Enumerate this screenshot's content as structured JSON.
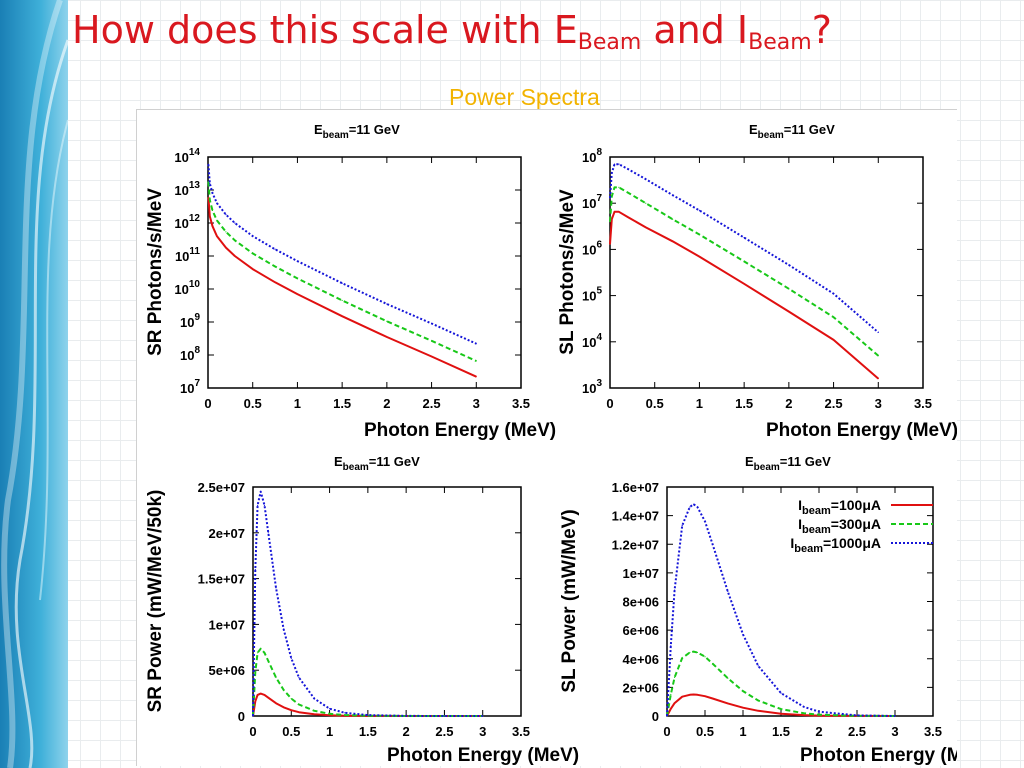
{
  "slide": {
    "title": {
      "part1": "How does this scale with E",
      "sub1": "Beam",
      "part2": " and I",
      "sub2": "Beam",
      "part3": "?"
    },
    "subtitle": "Power Spectra"
  },
  "colors": {
    "title": "#d9181f",
    "subtitle": "#f2b300",
    "i100": "#e01010",
    "i300": "#18c818",
    "i1000": "#1515d8"
  },
  "chart_data": [
    {
      "type": "line",
      "panel": "top-left",
      "title": {
        "main": "E",
        "sub": "beam",
        "rest": "=11 GeV"
      },
      "xlabel": "Photon Energy (MeV)",
      "ylabel": "SR Photons/s/MeV",
      "xlim": [
        0,
        3.5
      ],
      "ylim": [
        10000000.0,
        100000000000000.0
      ],
      "yscale": "log",
      "xticks": [
        "0",
        "0.5",
        "1",
        "1.5",
        "2",
        "2.5",
        "3",
        "3.5"
      ],
      "yticks": [
        {
          "base": "10",
          "exp": "14"
        },
        {
          "base": "10",
          "exp": "13"
        },
        {
          "base": "10",
          "exp": "12"
        },
        {
          "base": "10",
          "exp": "11"
        },
        {
          "base": "10",
          "exp": "10"
        },
        {
          "base": "10",
          "exp": "9"
        },
        {
          "base": "10",
          "exp": "8"
        },
        {
          "base": "10",
          "exp": "7"
        }
      ],
      "x": [
        0.005,
        0.02,
        0.05,
        0.1,
        0.2,
        0.3,
        0.5,
        0.75,
        1.0,
        1.5,
        2.0,
        2.5,
        3.0
      ],
      "series": [
        {
          "color": "red",
          "dash": "solid",
          "values": [
            6000000000000.0,
            1600000000000.0,
            800000000000.0,
            400000000000.0,
            180000000000.0,
            100000000000.0,
            40000000000.0,
            16000000000.0,
            7000000000.0,
            1500000000.0,
            350000000.0,
            90000000.0,
            22000000.0
          ]
        },
        {
          "color": "green",
          "dash": "dashed",
          "values": [
            18000000000000.0,
            5000000000000.0,
            2400000000000.0,
            1200000000000.0,
            540000000000.0,
            300000000000.0,
            120000000000.0,
            48000000000.0,
            21000000000.0,
            4500000000.0,
            1050000000.0,
            270000000.0,
            66000000.0
          ]
        },
        {
          "color": "blue",
          "dash": "dotted",
          "values": [
            60000000000000.0,
            16000000000000.0,
            8000000000000.0,
            4000000000000.0,
            1800000000000.0,
            1000000000000.0,
            400000000000.0,
            160000000000.0,
            70000000000.0,
            15000000000.0,
            3500000000.0,
            900000000.0,
            220000000.0
          ]
        }
      ]
    },
    {
      "type": "line",
      "panel": "top-right",
      "title": {
        "main": "E",
        "sub": "beam",
        "rest": "=11 GeV"
      },
      "xlabel": "Photon Energy (MeV)",
      "ylabel": "SL Photons/s/MeV",
      "xlim": [
        0,
        3.5
      ],
      "ylim": [
        1000.0,
        100000000.0
      ],
      "yscale": "log",
      "xticks": [
        "0",
        "0.5",
        "1",
        "1.5",
        "2",
        "2.5",
        "3",
        "3.5"
      ],
      "yticks": [
        {
          "base": "10",
          "exp": "8"
        },
        {
          "base": "10",
          "exp": "7"
        },
        {
          "base": "10",
          "exp": "6"
        },
        {
          "base": "10",
          "exp": "5"
        },
        {
          "base": "10",
          "exp": "4"
        },
        {
          "base": "10",
          "exp": "3"
        }
      ],
      "x": [
        0.0,
        0.02,
        0.05,
        0.1,
        0.2,
        0.4,
        0.7,
        1.0,
        1.5,
        2.0,
        2.5,
        3.0
      ],
      "series": [
        {
          "color": "red",
          "dash": "solid",
          "values": [
            1300000.0,
            4500000.0,
            6500000.0,
            6500000.0,
            5000000.0,
            3000000.0,
            1500000.0,
            700000.0,
            180000.0,
            45000.0,
            11000.0,
            1600.0
          ]
        },
        {
          "color": "green",
          "dash": "dashed",
          "values": [
            4000000.0,
            14000000.0,
            22000000.0,
            22000000.0,
            17000000.0,
            10000000.0,
            4500000.0,
            2100000.0,
            550000.0,
            140000.0,
            34000.0,
            5000.0
          ]
        },
        {
          "color": "blue",
          "dash": "dotted",
          "values": [
            13000000.0,
            45000000.0,
            70000000.0,
            70000000.0,
            55000000.0,
            33000000.0,
            15000000.0,
            7000000.0,
            1800000.0,
            460000.0,
            110000.0,
            16000.0
          ]
        }
      ]
    },
    {
      "type": "line",
      "panel": "bottom-left",
      "title": {
        "main": "E",
        "sub": "beam",
        "rest": "=11 GeV"
      },
      "xlabel": "Photon Energy (MeV)",
      "ylabel": "SR Power (mW/MeV/50k)",
      "xlim": [
        0,
        3.5
      ],
      "ylim": [
        0,
        25000000.0
      ],
      "yscale": "linear",
      "xticks": [
        "0",
        "0.5",
        "1",
        "1.5",
        "2",
        "2.5",
        "3",
        "3.5"
      ],
      "yticks": [
        "2.5e+07",
        "2e+07",
        "1.5e+07",
        "1e+07",
        "5e+06",
        "0"
      ],
      "x": [
        0.0,
        0.03,
        0.06,
        0.1,
        0.15,
        0.2,
        0.3,
        0.4,
        0.5,
        0.6,
        0.8,
        1.0,
        1.2,
        1.5,
        2.0,
        2.5,
        3.0
      ],
      "series": [
        {
          "color": "red",
          "dash": "solid",
          "values": [
            0,
            1600000.0,
            2300000.0,
            2450000.0,
            2300000.0,
            2000000.0,
            1400000.0,
            950000.0,
            630000.0,
            420000.0,
            190000.0,
            80000.0,
            35000.0,
            10000.0,
            1000.0,
            0,
            0
          ]
        },
        {
          "color": "green",
          "dash": "dashed",
          "values": [
            0,
            4800000.0,
            6900000.0,
            7350000.0,
            6900000.0,
            6000000.0,
            4200000.0,
            2850000.0,
            1900000.0,
            1250000.0,
            570000.0,
            240000.0,
            105000.0,
            30000.0,
            3000.0,
            0,
            0
          ]
        },
        {
          "color": "blue",
          "dash": "dotted",
          "values": [
            0,
            16000000.0,
            23000000.0,
            24500000.0,
            23000000.0,
            20000000.0,
            14000000.0,
            9500000.0,
            6300000.0,
            4200000.0,
            1900000.0,
            800000.0,
            350000.0,
            100000.0,
            10000.0,
            1000.0,
            0
          ]
        }
      ]
    },
    {
      "type": "line",
      "panel": "bottom-right",
      "title": {
        "main": "E",
        "sub": "beam",
        "rest": "=11 GeV"
      },
      "xlabel": "Photon Energy (MeV)",
      "ylabel": "SL Power (mW/MeV)",
      "xlim": [
        0,
        3.5
      ],
      "ylim": [
        0,
        16000000.0
      ],
      "yscale": "linear",
      "xticks": [
        "0",
        "0.5",
        "1",
        "1.5",
        "2",
        "2.5",
        "3",
        "3.5"
      ],
      "yticks": [
        "1.6e+07",
        "1.4e+07",
        "1.2e+07",
        "1e+07",
        "8e+06",
        "6e+06",
        "4e+06",
        "2e+06",
        "0"
      ],
      "x": [
        0.0,
        0.05,
        0.1,
        0.2,
        0.3,
        0.35,
        0.4,
        0.5,
        0.6,
        0.8,
        1.0,
        1.2,
        1.5,
        1.8,
        2.0,
        2.5,
        3.0
      ],
      "series": [
        {
          "color": "red",
          "dash": "solid",
          "values": [
            0,
            500000.0,
            900000.0,
            1350000.0,
            1480000.0,
            1500000.0,
            1480000.0,
            1380000.0,
            1220000.0,
            880000.0,
            580000.0,
            360000.0,
            160000.0,
            65000.0,
            30000.0,
            4000.0,
            0
          ]
        },
        {
          "color": "green",
          "dash": "dashed",
          "values": [
            0,
            1500000.0,
            2700000.0,
            4050000.0,
            4440000.0,
            4500000.0,
            4440000.0,
            4140000.0,
            3660000.0,
            2640000.0,
            1740000.0,
            1080000.0,
            480000.0,
            195000.0,
            90000.0,
            12000.0,
            0
          ]
        },
        {
          "color": "blue",
          "dash": "dotted",
          "values": [
            0,
            4900000.0,
            8800000.0,
            13300000.0,
            14600000.0,
            14800000.0,
            14600000.0,
            13600000.0,
            12000000.0,
            8700000.0,
            5700000.0,
            3500000.0,
            1600000.0,
            640000.0,
            300000.0,
            40000.0,
            0
          ]
        }
      ],
      "legend": {
        "position": "top-right",
        "entries": [
          {
            "main": "I",
            "sub": "beam",
            "rest": "=100μA",
            "color": "red",
            "dash": "solid"
          },
          {
            "main": "I",
            "sub": "beam",
            "rest": "=300μA",
            "color": "green",
            "dash": "dashed"
          },
          {
            "main": "I",
            "sub": "beam",
            "rest": "=1000μA",
            "color": "blue",
            "dash": "dotted"
          }
        ]
      }
    }
  ]
}
